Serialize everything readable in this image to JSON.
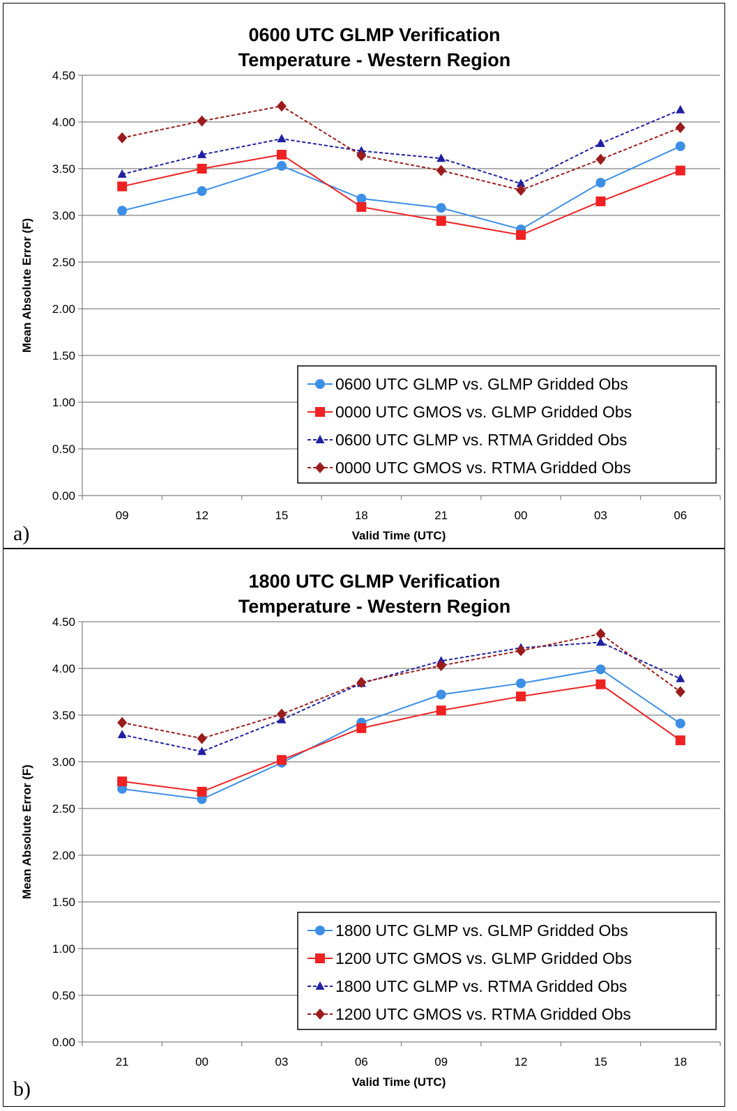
{
  "chart_data": [
    {
      "type": "line",
      "panel_label": "a)",
      "title": "0600 UTC GLMP Verification",
      "subtitle": "Temperature - Western Region",
      "xlabel": "Valid Time (UTC)",
      "ylabel": "Mean Absolute Error (F)",
      "ylim": [
        0,
        4.5
      ],
      "y_ticks": [
        "0.00",
        "0.50",
        "1.00",
        "1.50",
        "2.00",
        "2.50",
        "3.00",
        "3.50",
        "4.00",
        "4.50"
      ],
      "grid": true,
      "legend_position": "bottom-right",
      "categories": [
        "09",
        "12",
        "15",
        "18",
        "21",
        "00",
        "03",
        "06"
      ],
      "series": [
        {
          "name": "0600 UTC GLMP vs. GLMP Gridded Obs",
          "color": "#3d8fe6",
          "marker": "circle",
          "dashed": false,
          "values": [
            3.05,
            3.26,
            3.53,
            3.18,
            3.08,
            2.85,
            3.35,
            3.74
          ]
        },
        {
          "name": "0000 UTC GMOS vs. GLMP Gridded Obs",
          "color": "#ee2222",
          "marker": "square",
          "dashed": false,
          "values": [
            3.31,
            3.5,
            3.65,
            3.09,
            2.94,
            2.79,
            3.15,
            3.48
          ]
        },
        {
          "name": "0600 UTC GLMP vs. RTMA Gridded Obs",
          "color": "#2020a0",
          "marker": "triangle",
          "dashed": true,
          "values": [
            3.44,
            3.65,
            3.82,
            3.69,
            3.61,
            3.34,
            3.77,
            4.13
          ]
        },
        {
          "name": "0000 UTC GMOS vs. RTMA Gridded Obs",
          "color": "#9b1c1c",
          "marker": "diamond",
          "dashed": true,
          "values": [
            3.83,
            4.01,
            4.17,
            3.64,
            3.48,
            3.27,
            3.6,
            3.94
          ]
        }
      ]
    },
    {
      "type": "line",
      "panel_label": "b)",
      "title": "1800 UTC GLMP Verification",
      "subtitle": "Temperature - Western Region",
      "xlabel": "Valid Time (UTC)",
      "ylabel": "Mean Absolute Error (F)",
      "ylim": [
        0,
        4.5
      ],
      "y_ticks": [
        "0.00",
        "0.50",
        "1.00",
        "1.50",
        "2.00",
        "2.50",
        "3.00",
        "3.50",
        "4.00",
        "4.50"
      ],
      "grid": true,
      "legend_position": "bottom-right",
      "categories": [
        "21",
        "00",
        "03",
        "06",
        "09",
        "12",
        "15",
        "18"
      ],
      "series": [
        {
          "name": "1800 UTC GLMP vs. GLMP Gridded Obs",
          "color": "#3d8fe6",
          "marker": "circle",
          "dashed": false,
          "values": [
            2.71,
            2.6,
            2.99,
            3.42,
            3.72,
            3.84,
            3.99,
            3.41
          ]
        },
        {
          "name": "1200 UTC GMOS vs. GLMP Gridded Obs",
          "color": "#ee2222",
          "marker": "square",
          "dashed": false,
          "values": [
            2.79,
            2.68,
            3.02,
            3.36,
            3.55,
            3.7,
            3.83,
            3.23
          ]
        },
        {
          "name": "1800 UTC GLMP vs. RTMA Gridded Obs",
          "color": "#2020a0",
          "marker": "triangle",
          "dashed": true,
          "values": [
            3.29,
            3.11,
            3.45,
            3.84,
            4.08,
            4.22,
            4.28,
            3.89
          ]
        },
        {
          "name": "1200 UTC GMOS vs. RTMA Gridded Obs",
          "color": "#9b1c1c",
          "marker": "diamond",
          "dashed": true,
          "values": [
            3.42,
            3.25,
            3.51,
            3.85,
            4.03,
            4.19,
            4.37,
            3.75
          ]
        }
      ]
    }
  ]
}
